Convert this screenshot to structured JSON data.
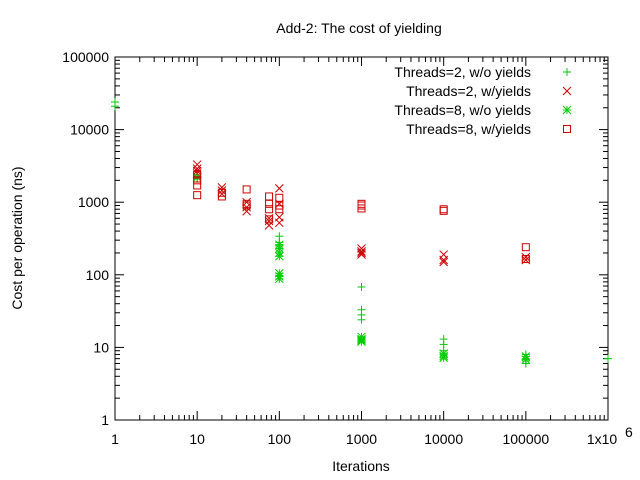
{
  "chart_data": {
    "type": "scatter",
    "title": "Add-2: The cost of yielding",
    "xlabel": "Iterations",
    "ylabel": "Cost per operation (ns)",
    "xscale": "log",
    "yscale": "log",
    "xlim": [
      1,
      1000000
    ],
    "ylim": [
      1,
      100000
    ],
    "x_ticks": [
      {
        "value": 1,
        "label": "1"
      },
      {
        "value": 10,
        "label": "10"
      },
      {
        "value": 100,
        "label": "100"
      },
      {
        "value": 1000,
        "label": "1000"
      },
      {
        "value": 10000,
        "label": "10000"
      },
      {
        "value": 100000,
        "label": "100000"
      },
      {
        "value": 1000000,
        "label": "1x10",
        "exp": "6"
      }
    ],
    "y_ticks": [
      {
        "value": 1,
        "label": "1"
      },
      {
        "value": 10,
        "label": "10"
      },
      {
        "value": 100,
        "label": "100"
      },
      {
        "value": 1000,
        "label": "1000"
      },
      {
        "value": 10000,
        "label": "10000"
      },
      {
        "value": 100000,
        "label": "100000"
      }
    ],
    "grid": false,
    "legend_position": "top-right",
    "series": [
      {
        "name": "Threads=2, w/o yields",
        "marker": "plus",
        "color": "#00cc00",
        "points": [
          [
            1,
            21000
          ],
          [
            1,
            24000
          ],
          [
            10,
            2300
          ],
          [
            10,
            2100
          ],
          [
            100,
            340
          ],
          [
            100,
            280
          ],
          [
            100,
            250
          ],
          [
            100,
            230
          ],
          [
            1000,
            68
          ],
          [
            1000,
            33
          ],
          [
            1000,
            28
          ],
          [
            1000,
            24
          ],
          [
            10000,
            13
          ],
          [
            10000,
            11
          ],
          [
            10000,
            9
          ],
          [
            100000,
            8
          ],
          [
            100000,
            7
          ],
          [
            100000,
            6.5
          ],
          [
            100000,
            6
          ],
          [
            1000000,
            7
          ]
        ]
      },
      {
        "name": "Threads=2, w/yields",
        "marker": "x",
        "color": "#cc0000",
        "points": [
          [
            10,
            3300
          ],
          [
            10,
            2900
          ],
          [
            10,
            2700
          ],
          [
            10,
            2500
          ],
          [
            20,
            1600
          ],
          [
            20,
            1450
          ],
          [
            20,
            1300
          ],
          [
            40,
            1000
          ],
          [
            40,
            850
          ],
          [
            40,
            750
          ],
          [
            75,
            600
          ],
          [
            75,
            550
          ],
          [
            75,
            480
          ],
          [
            100,
            1550
          ],
          [
            100,
            950
          ],
          [
            100,
            620
          ],
          [
            100,
            520
          ],
          [
            1000,
            230
          ],
          [
            1000,
            210
          ],
          [
            1000,
            200
          ],
          [
            1000,
            190
          ],
          [
            10000,
            190
          ],
          [
            10000,
            160
          ],
          [
            10000,
            150
          ],
          [
            100000,
            175
          ],
          [
            100000,
            160
          ]
        ]
      },
      {
        "name": "Threads=8, w/o yields",
        "marker": "star",
        "color": "#00cc00",
        "points": [
          [
            10,
            2200
          ],
          [
            100,
            260
          ],
          [
            100,
            230
          ],
          [
            100,
            200
          ],
          [
            100,
            180
          ],
          [
            100,
            105
          ],
          [
            100,
            95
          ],
          [
            100,
            88
          ],
          [
            1000,
            14
          ],
          [
            1000,
            13
          ],
          [
            1000,
            12.5
          ],
          [
            1000,
            12
          ],
          [
            10000,
            8.2
          ],
          [
            10000,
            7.6
          ],
          [
            10000,
            7.2
          ],
          [
            100000,
            7.5
          ],
          [
            100000,
            6.8
          ]
        ]
      },
      {
        "name": "Threads=8, w/yields",
        "marker": "square",
        "color": "#cc0000",
        "points": [
          [
            10,
            2400
          ],
          [
            10,
            2000
          ],
          [
            10,
            1700
          ],
          [
            10,
            1250
          ],
          [
            20,
            1200
          ],
          [
            20,
            1350
          ],
          [
            40,
            1500
          ],
          [
            40,
            950
          ],
          [
            40,
            900
          ],
          [
            75,
            1200
          ],
          [
            75,
            950
          ],
          [
            75,
            800
          ],
          [
            75,
            580
          ],
          [
            100,
            1150
          ],
          [
            100,
            900
          ],
          [
            100,
            800
          ],
          [
            1000,
            950
          ],
          [
            1000,
            900
          ],
          [
            1000,
            820
          ],
          [
            10000,
            800
          ],
          [
            10000,
            760
          ],
          [
            100000,
            240
          ],
          [
            100000,
            165
          ]
        ]
      }
    ]
  }
}
